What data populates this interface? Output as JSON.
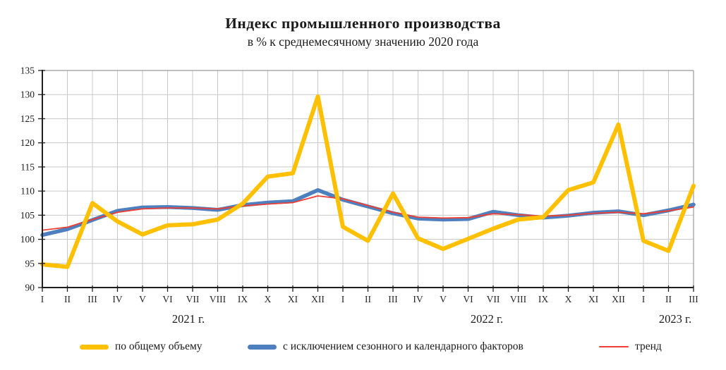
{
  "title": "Индекс промышленного производства",
  "subtitle": "в % к среднемесячному значению 2020 года",
  "legend": {
    "items": [
      {
        "label": "по общему объему",
        "swatch": "thick-yellow-line"
      },
      {
        "label": "с исключением сезонного и календарного факторов",
        "swatch": "thick-blue-line"
      },
      {
        "label": "тренд",
        "swatch": "thin-red-line"
      }
    ]
  },
  "chart_data": {
    "type": "line",
    "title": "Индекс промышленного производства",
    "subtitle": "в % к среднемесячному значению 2020 года",
    "xlabel": "",
    "ylabel": "",
    "ylim": [
      90,
      135
    ],
    "ytick_step": 5,
    "grid": true,
    "legend_position": "bottom",
    "x_tick_labels": [
      "I",
      "II",
      "III",
      "IV",
      "V",
      "VI",
      "VII",
      "VIII",
      "IX",
      "X",
      "XI",
      "XII",
      "I",
      "II",
      "III",
      "IV",
      "V",
      "VI",
      "VII",
      "VIII",
      "IX",
      "X",
      "XI",
      "XII",
      "I",
      "II",
      "III"
    ],
    "year_groups": [
      {
        "label": "2021 г.",
        "months": 12
      },
      {
        "label": "2022 г.",
        "months": 12
      },
      {
        "label": "2023 г.",
        "months": 3
      }
    ],
    "series": [
      {
        "name": "по общему объему",
        "color": "#FFC000",
        "stroke_width": 6,
        "zorder": 3,
        "values": [
          94.8,
          94.3,
          107.5,
          103.7,
          101.0,
          102.9,
          103.1,
          104.1,
          107.4,
          113.0,
          113.7,
          129.6,
          102.6,
          99.7,
          109.5,
          100.2,
          98.0,
          100.1,
          102.2,
          104.1,
          104.6,
          110.2,
          111.8,
          123.8,
          99.7,
          97.6,
          111.1
        ]
      },
      {
        "name": "с исключением сезонного и календарного факторов",
        "color": "#4E7FBE",
        "stroke_width": 5.5,
        "zorder": 1,
        "values": [
          100.9,
          102.1,
          104.0,
          105.9,
          106.6,
          106.7,
          106.5,
          106.1,
          107.1,
          107.6,
          107.9,
          110.2,
          108.2,
          106.8,
          105.4,
          104.3,
          104.1,
          104.2,
          105.7,
          105.0,
          104.5,
          104.9,
          105.5,
          105.8,
          105.0,
          106.0,
          107.2
        ]
      },
      {
        "name": "тренд",
        "color": "#EF3E33",
        "stroke_width": 1.8,
        "zorder": 2,
        "values": [
          101.9,
          102.5,
          104.1,
          105.6,
          106.3,
          106.5,
          106.5,
          106.3,
          106.9,
          107.3,
          107.6,
          109.0,
          108.4,
          107.0,
          105.6,
          104.6,
          104.4,
          104.5,
          105.3,
          105.1,
          104.8,
          105.0,
          105.4,
          105.6,
          105.3,
          105.9,
          106.7
        ]
      }
    ]
  }
}
